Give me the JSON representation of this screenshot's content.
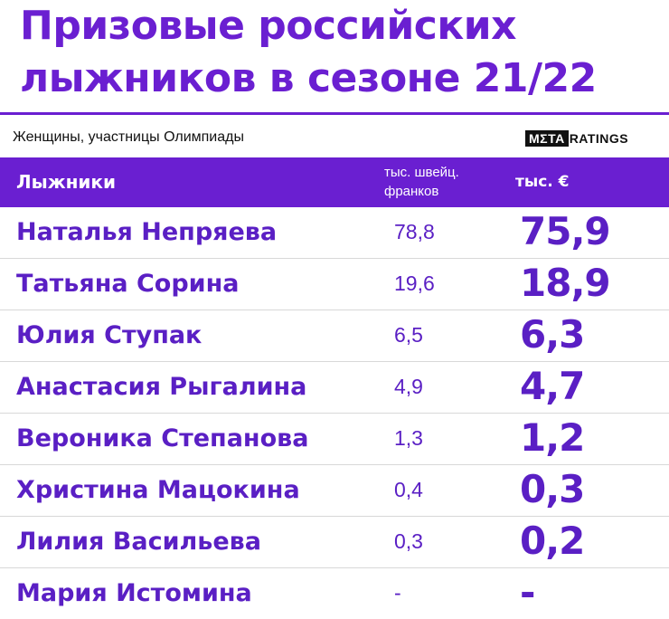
{
  "title": {
    "line1": "Призовые российских",
    "line2": "лыжников в сезоне 21/22"
  },
  "subtitle": "Женщины, участницы Олимпиады",
  "brand": {
    "meta": "MΣTA",
    "ratings": "RATINGS"
  },
  "table": {
    "columns": [
      "Лыжники",
      "тыс. швейц. франков",
      "тыс. €"
    ],
    "rows": [
      {
        "name": "Наталья Непряева",
        "chf": "78,8",
        "eur": "75,9"
      },
      {
        "name": "Татьяна Сорина",
        "chf": "19,6",
        "eur": "18,9"
      },
      {
        "name": "Юлия Ступак",
        "chf": "6,5",
        "eur": "6,3"
      },
      {
        "name": "Анастасия Рыгалина",
        "chf": "4,9",
        "eur": "4,7"
      },
      {
        "name": "Вероника Степанова",
        "chf": "1,3",
        "eur": "1,2"
      },
      {
        "name": "Христина Мацокина",
        "chf": "0,4",
        "eur": "0,3"
      },
      {
        "name": "Лилия Васильева",
        "chf": "0,3",
        "eur": "0,2"
      },
      {
        "name": "Мария Истомина",
        "chf": "-",
        "eur": "-"
      }
    ]
  },
  "colors": {
    "accent": "#6a1fd1",
    "text": "#5a1fc4"
  }
}
